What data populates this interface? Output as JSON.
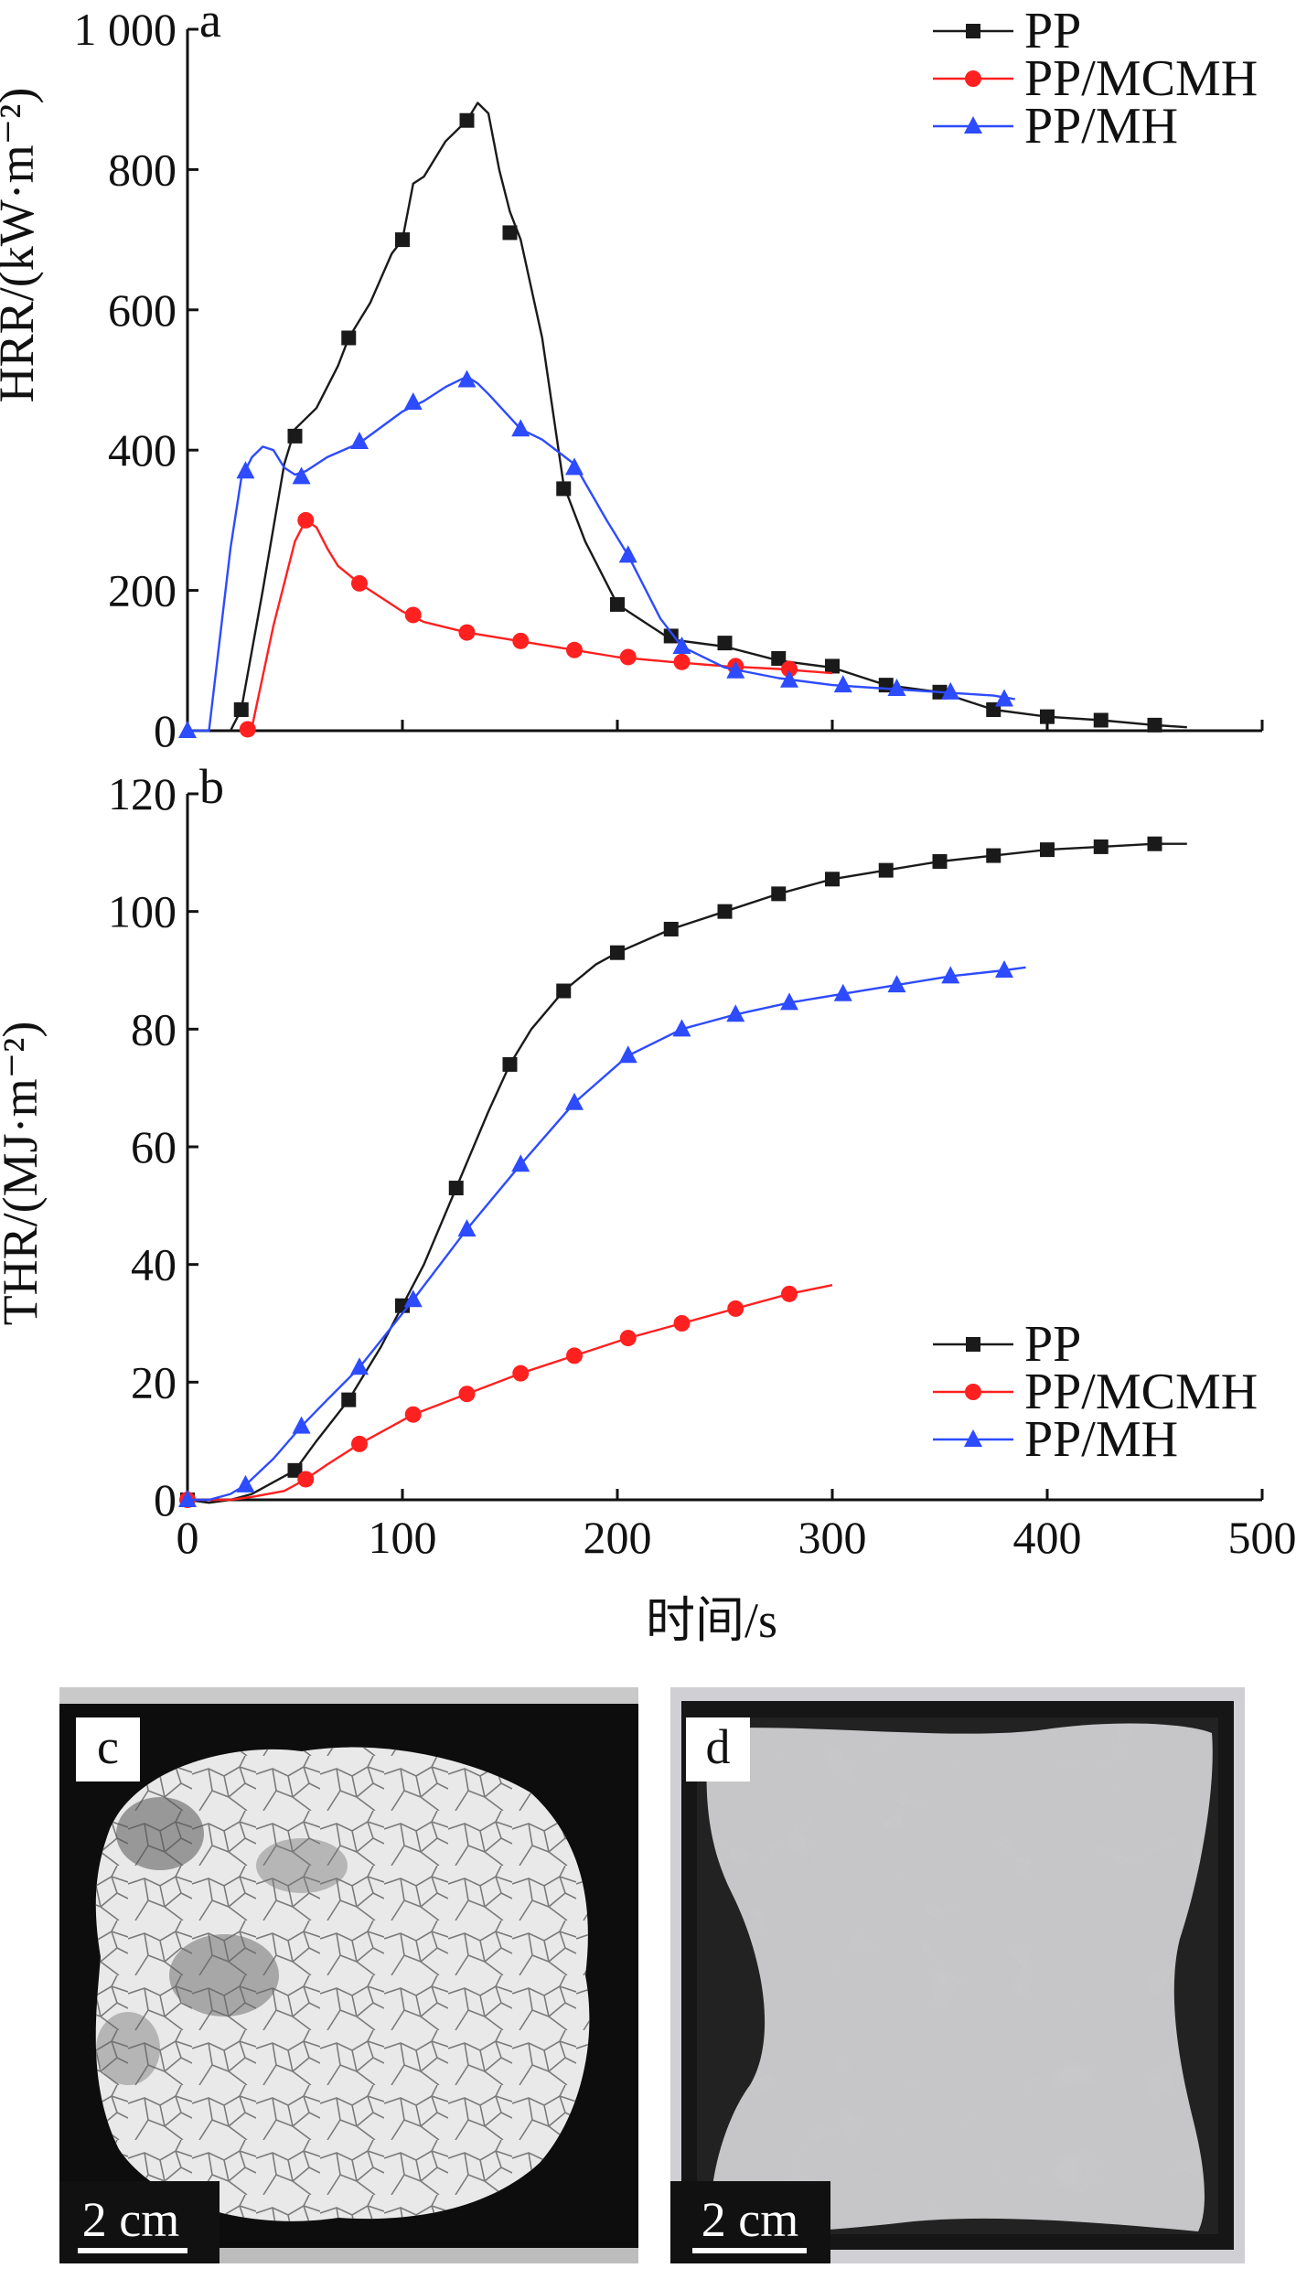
{
  "figure": {
    "xlabel": "时间/s",
    "colors": {
      "PP": "#1a1a1a",
      "PP/MCMH": "#ff2020",
      "PP/MH": "#2d4bff"
    },
    "markers": {
      "PP": "square",
      "PP/MCMH": "circle",
      "PP/MH": "triangle"
    }
  },
  "chart_data": [
    {
      "type": "line",
      "panel_label": "a",
      "ylabel": "HRR/(kW·m⁻²)",
      "xlim": [
        0,
        500
      ],
      "ylim": [
        0,
        1000
      ],
      "yticks": [
        "0",
        "200",
        "400",
        "600",
        "800",
        "1 000"
      ],
      "legend": {
        "placement": "top-right",
        "entries": [
          "PP",
          "PP/MCMH",
          "PP/MH"
        ]
      },
      "series": [
        {
          "name": "PP",
          "x": [
            20,
            25,
            35,
            45,
            50,
            60,
            70,
            75,
            85,
            95,
            100,
            105,
            110,
            120,
            130,
            135,
            140,
            145,
            150,
            155,
            165,
            175,
            185,
            200,
            215,
            225,
            250,
            275,
            300,
            325,
            350,
            375,
            400,
            425,
            450,
            465
          ],
          "y": [
            0,
            30,
            200,
            380,
            430,
            460,
            520,
            560,
            610,
            680,
            700,
            780,
            790,
            840,
            870,
            895,
            880,
            800,
            740,
            700,
            560,
            350,
            270,
            180,
            150,
            130,
            120,
            100,
            90,
            65,
            55,
            30,
            20,
            15,
            8,
            5
          ],
          "marker_x": [
            25,
            50,
            75,
            100,
            130,
            150,
            175,
            200,
            225,
            250,
            275,
            300,
            325,
            350,
            375,
            400,
            425,
            450
          ],
          "marker_y": [
            30,
            420,
            560,
            700,
            870,
            710,
            345,
            180,
            135,
            125,
            103,
            92,
            65,
            55,
            30,
            20,
            15,
            8
          ]
        },
        {
          "name": "PP/MCMH",
          "x": [
            25,
            30,
            40,
            50,
            55,
            60,
            65,
            70,
            80,
            90,
            100,
            110,
            130,
            150,
            180,
            200,
            225,
            250,
            275,
            300
          ],
          "y": [
            0,
            5,
            150,
            270,
            300,
            290,
            260,
            235,
            210,
            190,
            170,
            155,
            140,
            130,
            115,
            105,
            98,
            92,
            88,
            82
          ],
          "marker_x": [
            28,
            55,
            80,
            105,
            130,
            155,
            180,
            205,
            230,
            255,
            280
          ],
          "marker_y": [
            2,
            300,
            210,
            165,
            140,
            128,
            115,
            105,
            98,
            92,
            88
          ]
        },
        {
          "name": "PP/MH",
          "x": [
            0,
            10,
            20,
            25,
            30,
            35,
            40,
            45,
            50,
            55,
            65,
            80,
            100,
            110,
            120,
            130,
            135,
            140,
            155,
            165,
            180,
            195,
            205,
            220,
            230,
            250,
            275,
            300,
            325,
            350,
            375,
            385
          ],
          "y": [
            0,
            0,
            260,
            360,
            390,
            405,
            400,
            375,
            365,
            370,
            390,
            410,
            455,
            470,
            490,
            505,
            495,
            480,
            430,
            415,
            380,
            300,
            250,
            160,
            120,
            90,
            75,
            65,
            60,
            55,
            50,
            45
          ],
          "marker_x": [
            0,
            27,
            53,
            80,
            105,
            130,
            155,
            180,
            205,
            230,
            255,
            280,
            305,
            330,
            355,
            380
          ],
          "marker_y": [
            0,
            370,
            362,
            412,
            468,
            500,
            430,
            375,
            250,
            120,
            85,
            72,
            65,
            60,
            55,
            45
          ]
        }
      ]
    },
    {
      "type": "line",
      "panel_label": "b",
      "ylabel": "THR/(MJ·m⁻²)",
      "xlabel": "时间/s",
      "xlim": [
        0,
        500
      ],
      "ylim": [
        0,
        120
      ],
      "xticks": [
        "0",
        "100",
        "200",
        "300",
        "400",
        "500"
      ],
      "yticks": [
        "0",
        "20",
        "40",
        "60",
        "80",
        "100",
        "120"
      ],
      "legend": {
        "placement": "lower-right",
        "entries": [
          "PP",
          "PP/MCMH",
          "PP/MH"
        ]
      },
      "series": [
        {
          "name": "PP",
          "x": [
            0,
            10,
            20,
            30,
            40,
            50,
            60,
            75,
            90,
            100,
            110,
            125,
            140,
            150,
            160,
            175,
            190,
            200,
            225,
            250,
            275,
            300,
            325,
            350,
            375,
            400,
            425,
            450,
            465
          ],
          "y": [
            0,
            -0.5,
            0,
            1,
            3,
            5,
            10,
            17,
            26,
            33,
            40,
            53,
            66,
            74,
            80,
            86.5,
            91,
            93,
            97,
            100,
            103,
            105.5,
            107,
            108.5,
            109.5,
            110.5,
            111,
            111.5,
            111.5
          ],
          "marker_x": [
            0,
            50,
            75,
            100,
            125,
            150,
            175,
            200,
            225,
            250,
            275,
            300,
            325,
            350,
            375,
            400,
            425,
            450
          ],
          "marker_y": [
            0,
            5,
            17,
            33,
            53,
            74,
            86.5,
            93,
            97,
            100,
            103,
            105.5,
            107,
            108.5,
            109.5,
            110.5,
            111,
            111.5
          ]
        },
        {
          "name": "PP/MCMH",
          "x": [
            0,
            20,
            30,
            45,
            55,
            65,
            80,
            105,
            130,
            155,
            180,
            205,
            230,
            255,
            280,
            300
          ],
          "y": [
            0,
            0,
            0.5,
            1.5,
            3.5,
            6,
            9.5,
            14.5,
            18,
            21.5,
            24.5,
            27.5,
            30,
            32.5,
            35,
            36.5
          ],
          "marker_x": [
            0,
            55,
            80,
            105,
            130,
            155,
            180,
            205,
            230,
            255,
            280
          ],
          "marker_y": [
            0,
            3.5,
            9.5,
            14.5,
            18,
            21.5,
            24.5,
            27.5,
            30,
            32.5,
            35
          ]
        },
        {
          "name": "PP/MH",
          "x": [
            0,
            10,
            20,
            27,
            40,
            53,
            65,
            80,
            92,
            105,
            130,
            155,
            180,
            205,
            230,
            255,
            280,
            305,
            330,
            355,
            380,
            390
          ],
          "y": [
            0,
            0,
            1,
            2.5,
            7,
            12.5,
            17,
            22.5,
            28,
            34,
            46,
            57,
            67.5,
            75.5,
            80,
            82.5,
            84.5,
            86,
            87.5,
            89,
            90,
            90.5
          ],
          "marker_x": [
            0,
            27,
            53,
            80,
            105,
            130,
            155,
            180,
            205,
            230,
            255,
            280,
            305,
            330,
            355,
            380
          ],
          "marker_y": [
            0,
            2.5,
            12.5,
            22.5,
            34,
            46,
            57,
            67.5,
            75.5,
            80,
            82.5,
            84.5,
            86,
            87.5,
            89,
            90
          ]
        }
      ]
    }
  ],
  "photos": [
    {
      "label": "c",
      "scale_bar": "2 cm"
    },
    {
      "label": "d",
      "scale_bar": "2 cm"
    }
  ]
}
